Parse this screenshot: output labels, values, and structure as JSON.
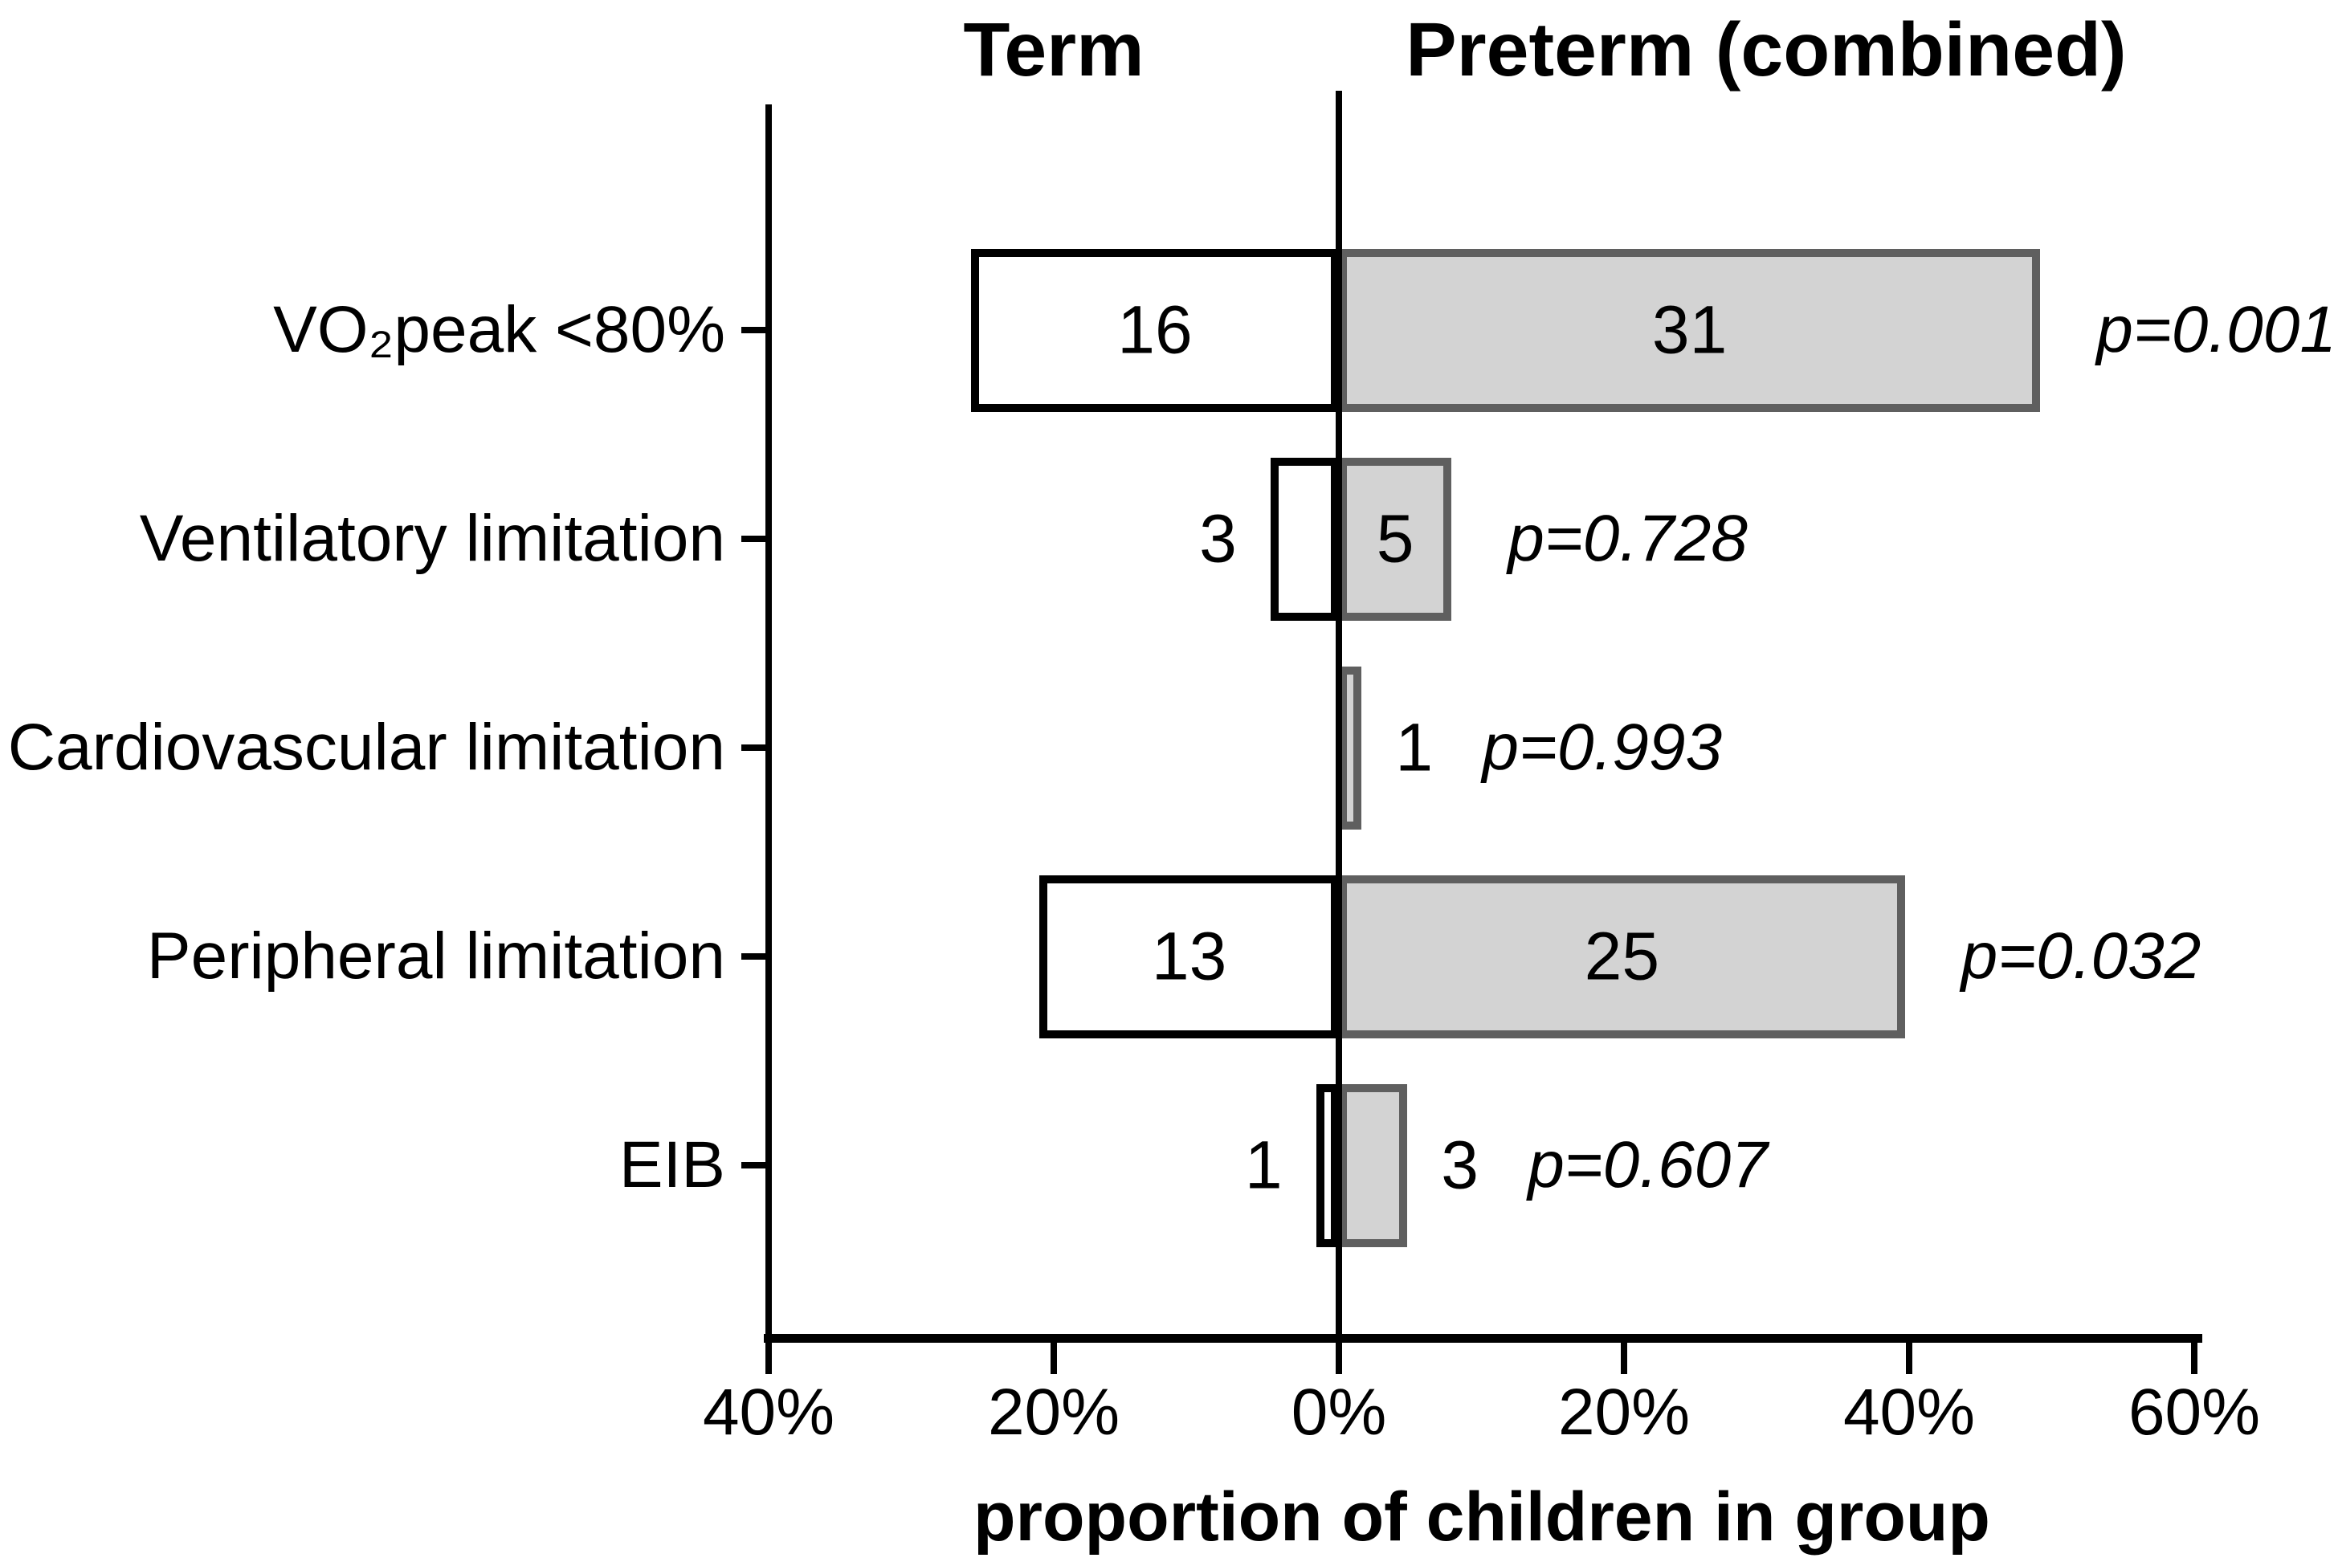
{
  "titles": {
    "term": "Term",
    "preterm": "Preterm (combined)"
  },
  "axis": {
    "label": "proportion of children in group"
  },
  "colors": {
    "term_fill": "#ffffff",
    "term_border": "#000000",
    "preterm_fill": "#d3d3d3",
    "preterm_border": "#5f5f5f",
    "axis_line": "#000000",
    "text": "#000000"
  },
  "chart_data": {
    "type": "bar",
    "orientation": "horizontal-diverging",
    "title_left": "Term",
    "title_right": "Preterm (combined)",
    "xlabel": "proportion of children in group",
    "x_tick_labels": [
      "40%",
      "20%",
      "0%",
      "20%",
      "40%",
      "60%"
    ],
    "x_tick_values": [
      -40,
      -20,
      0,
      20,
      40,
      60
    ],
    "xlim": [
      -40,
      60
    ],
    "grid": false,
    "categories": [
      "VO₂peak <80%",
      "Ventilatory limitation",
      "Cardiovascular limitation",
      "Peripheral limitation",
      "EIB"
    ],
    "series": [
      {
        "name": "Term",
        "side": "left",
        "counts": [
          16,
          3,
          0,
          13,
          1
        ],
        "percents": [
          25.8,
          4.8,
          0,
          21.0,
          1.6
        ],
        "count_labels": [
          "16",
          "3",
          "",
          "13",
          "1"
        ],
        "label_placement": [
          "inside",
          "outside",
          "none",
          "inside",
          "outside"
        ]
      },
      {
        "name": "Preterm (combined)",
        "side": "right",
        "counts": [
          31,
          5,
          1,
          25,
          3
        ],
        "percents": [
          49.2,
          7.9,
          1.6,
          39.7,
          4.8
        ],
        "count_labels": [
          "31",
          "5",
          "1",
          "25",
          "3"
        ],
        "label_placement": [
          "inside",
          "inside",
          "outside",
          "inside",
          "outside"
        ]
      }
    ],
    "p_values": [
      "p=0.001",
      "p=0.728",
      "p=0.993",
      "p=0.032",
      "p=0.607"
    ]
  }
}
